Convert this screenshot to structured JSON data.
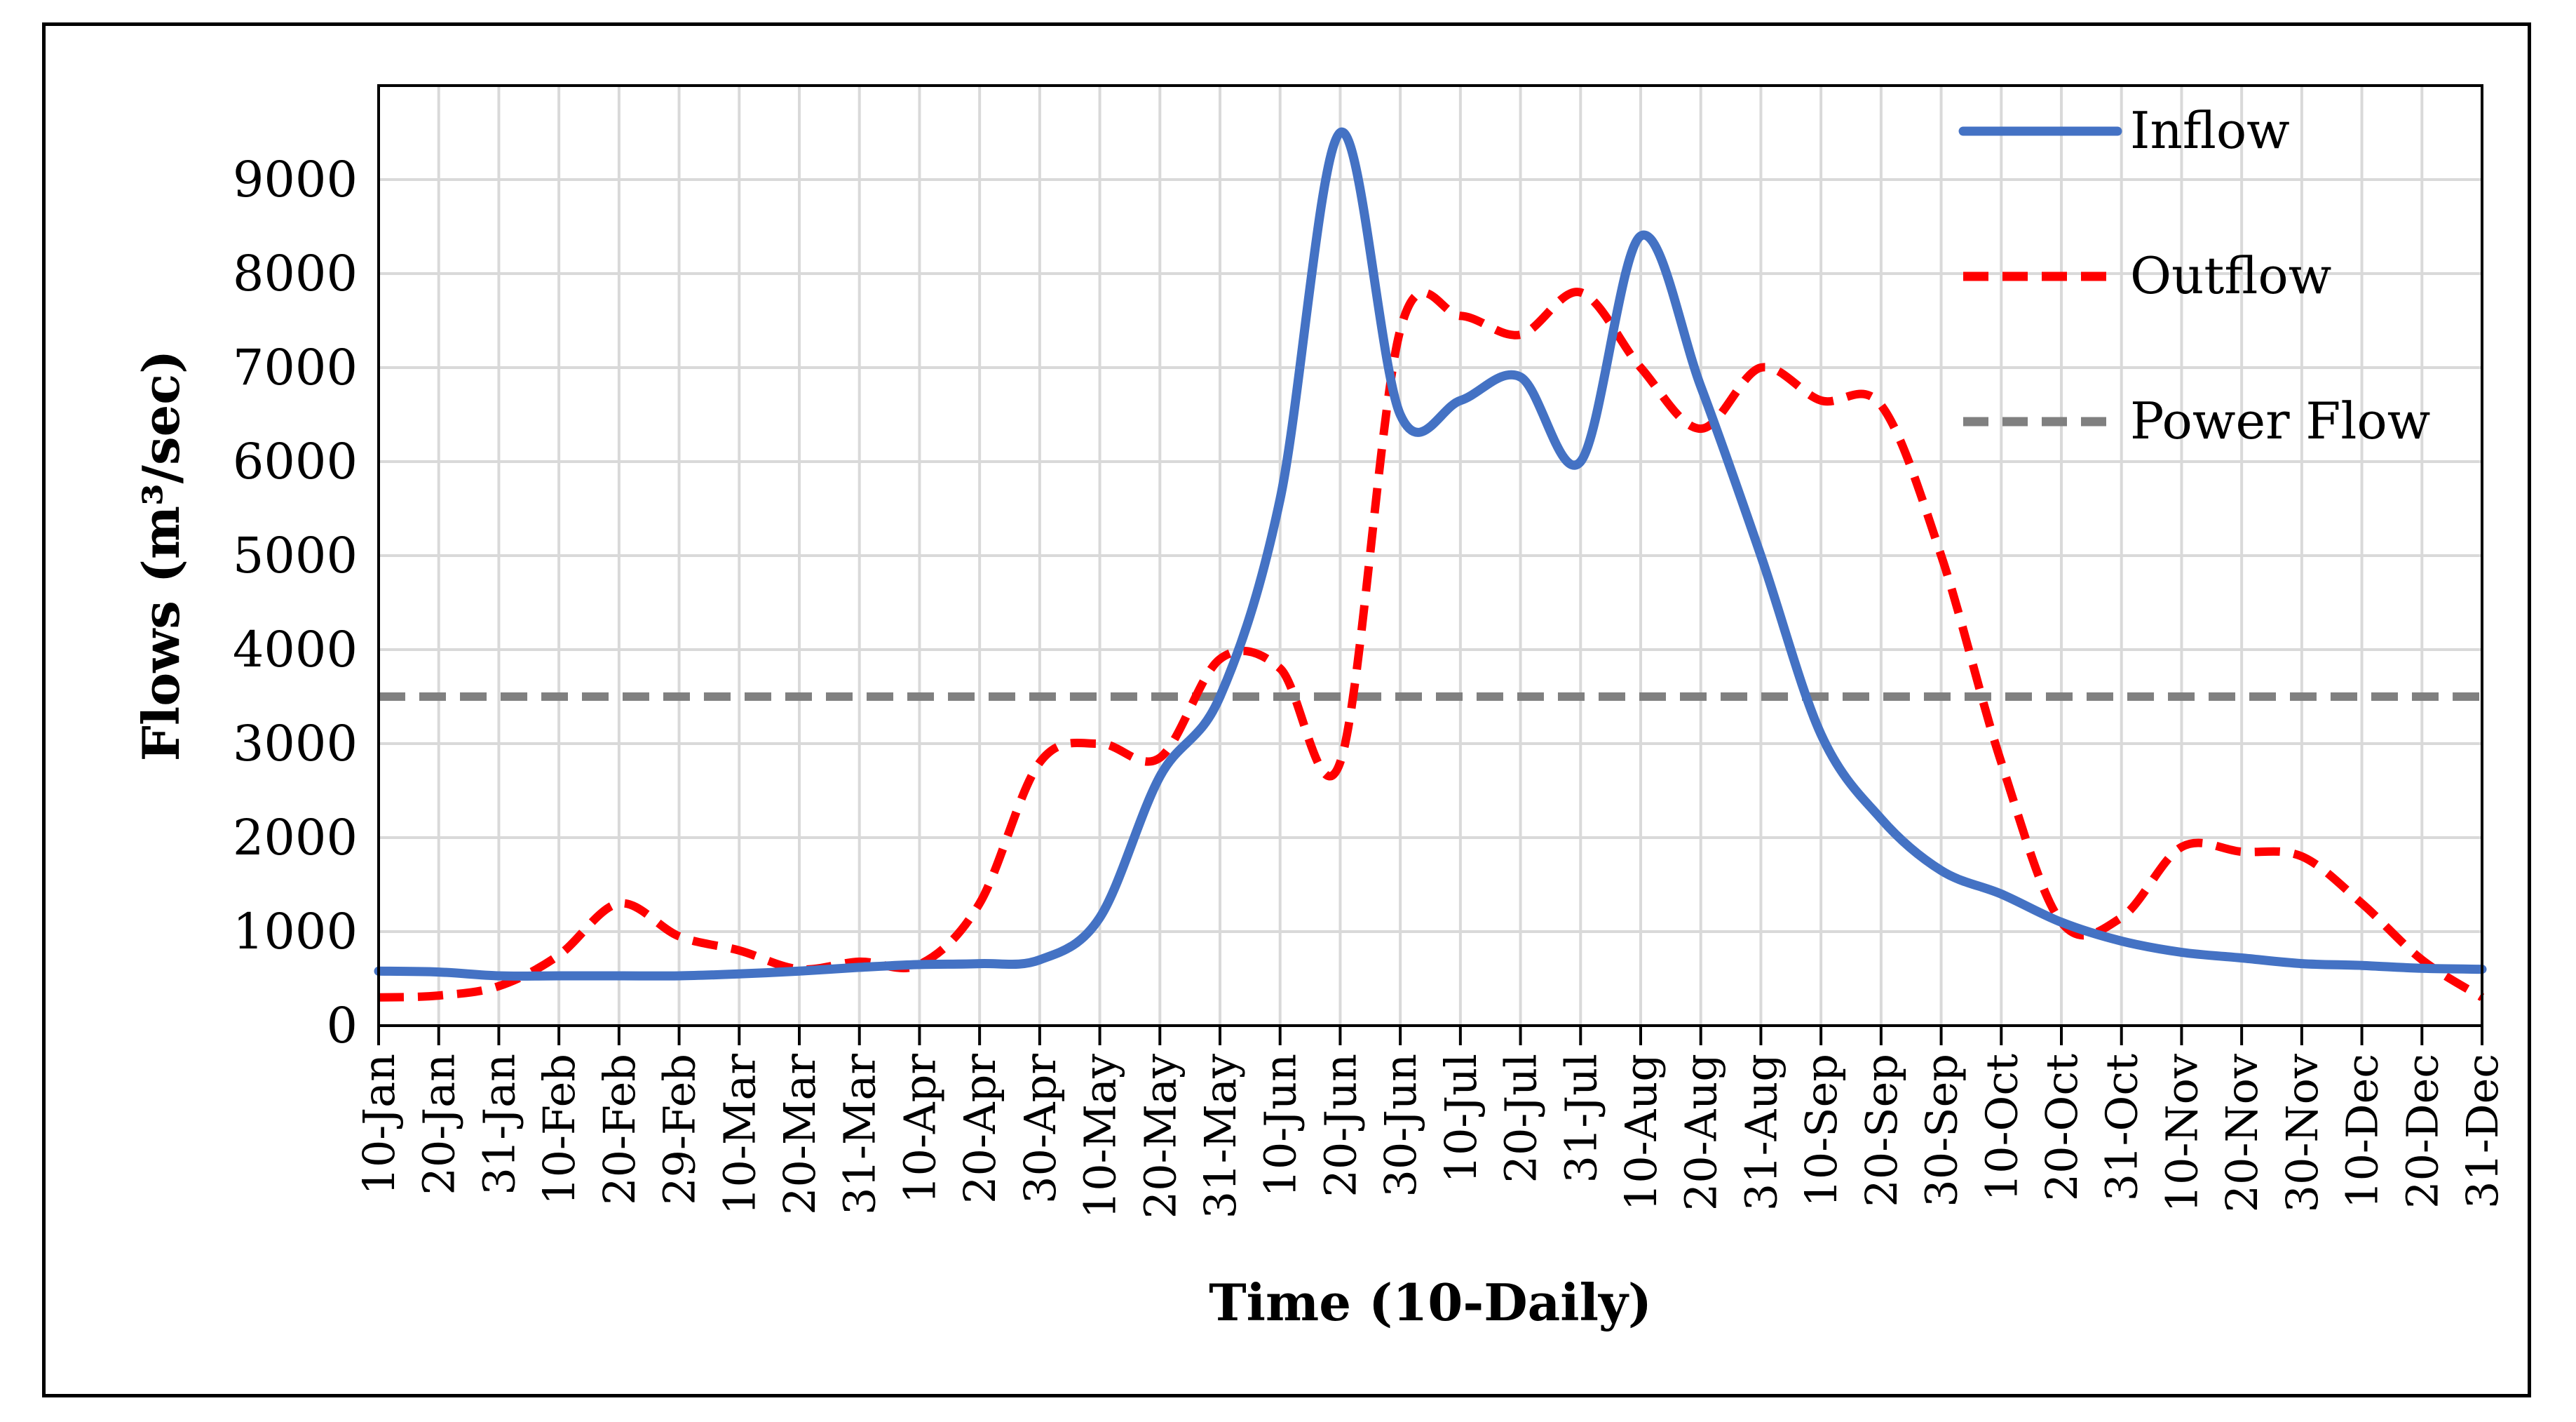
{
  "chart_data": {
    "type": "line",
    "xlabel": "Time (10-Daily)",
    "ylabel": "Flows (m³/sec)",
    "ylim": [
      0,
      10000
    ],
    "y_ticks": [
      0,
      1000,
      2000,
      3000,
      4000,
      5000,
      6000,
      7000,
      8000,
      9000
    ],
    "grid": true,
    "legend_position": "top-right",
    "categories": [
      "10-Jan",
      "20-Jan",
      "31-Jan",
      "10-Feb",
      "20-Feb",
      "29-Feb",
      "10-Mar",
      "20-Mar",
      "31-Mar",
      "10-Apr",
      "20-Apr",
      "30-Apr",
      "10-May",
      "20-May",
      "31-May",
      "10-Jun",
      "20-Jun",
      "30-Jun",
      "10-Jul",
      "20-Jul",
      "31-Jul",
      "10-Aug",
      "20-Aug",
      "31-Aug",
      "10-Sep",
      "20-Sep",
      "30-Sep",
      "10-Oct",
      "20-Oct",
      "31-Oct",
      "10-Nov",
      "20-Nov",
      "30-Nov",
      "10-Dec",
      "20-Dec",
      "31-Dec"
    ],
    "series": [
      {
        "name": "Inflow",
        "color": "#4472C4",
        "style": "solid",
        "values": [
          580,
          570,
          530,
          530,
          530,
          530,
          550,
          580,
          620,
          650,
          660,
          700,
          1150,
          2650,
          3500,
          5600,
          9500,
          6500,
          6650,
          6900,
          6000,
          8400,
          6800,
          5000,
          3100,
          2200,
          1650,
          1400,
          1100,
          900,
          780,
          720,
          660,
          640,
          610,
          600
        ]
      },
      {
        "name": "Outflow",
        "color": "#FF0000",
        "style": "dashed",
        "values": [
          300,
          320,
          420,
          750,
          1300,
          950,
          800,
          600,
          680,
          650,
          1300,
          2800,
          3000,
          2850,
          3900,
          3800,
          2800,
          7400,
          7550,
          7350,
          7800,
          7000,
          6350,
          7000,
          6650,
          6600,
          5000,
          2800,
          1100,
          1150,
          1900,
          1850,
          1800,
          1300,
          700,
          300
        ]
      },
      {
        "name": "Power Flow",
        "color": "#808080",
        "style": "dashed",
        "values": [
          3500,
          3500,
          3500,
          3500,
          3500,
          3500,
          3500,
          3500,
          3500,
          3500,
          3500,
          3500,
          3500,
          3500,
          3500,
          3500,
          3500,
          3500,
          3500,
          3500,
          3500,
          3500,
          3500,
          3500,
          3500,
          3500,
          3500,
          3500,
          3500,
          3500,
          3500,
          3500,
          3500,
          3500,
          3500,
          3500
        ]
      }
    ]
  }
}
